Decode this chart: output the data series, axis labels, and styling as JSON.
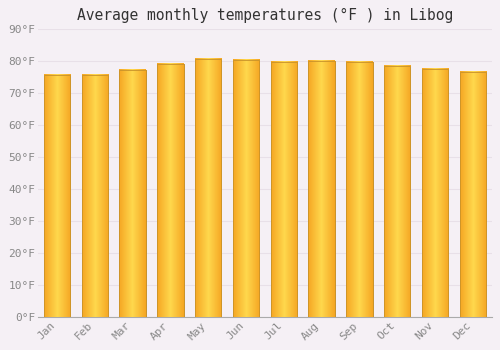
{
  "title": "Average monthly temperatures (°F ) in Libog",
  "months": [
    "Jan",
    "Feb",
    "Mar",
    "Apr",
    "May",
    "Jun",
    "Jul",
    "Aug",
    "Sep",
    "Oct",
    "Nov",
    "Dec"
  ],
  "values": [
    75.5,
    75.7,
    77.0,
    79.0,
    80.5,
    80.2,
    79.5,
    80.0,
    79.5,
    78.5,
    77.5,
    76.5
  ],
  "bar_color_center": "#FFD84D",
  "bar_color_edge": "#F5A623",
  "bar_outline": "#b8860b",
  "ylim": [
    0,
    90
  ],
  "yticks": [
    0,
    10,
    20,
    30,
    40,
    50,
    60,
    70,
    80,
    90
  ],
  "ytick_labels": [
    "0°F",
    "10°F",
    "20°F",
    "30°F",
    "40°F",
    "50°F",
    "60°F",
    "70°F",
    "80°F",
    "90°F"
  ],
  "background_color": "#f5f0f5",
  "plot_bg_color": "#f5f0f5",
  "grid_color": "#e8e0e8",
  "title_fontsize": 10.5,
  "tick_fontsize": 8,
  "bar_width": 0.7,
  "tick_color": "#888888"
}
